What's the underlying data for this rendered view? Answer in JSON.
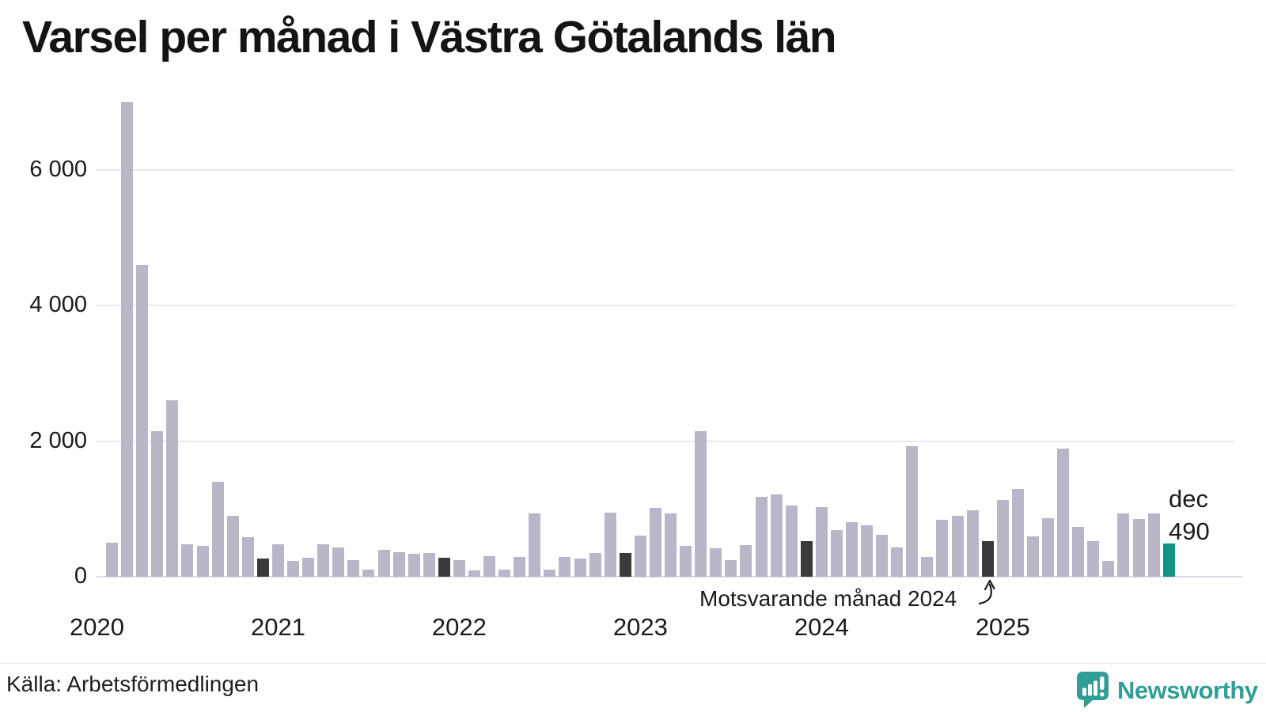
{
  "title": "Varsel per månad i Västra Götalands län",
  "chart_data": {
    "type": "bar",
    "title": "Varsel per månad i Västra Götalands län",
    "start_year": 2020,
    "series": [
      {
        "name": "Varsel per månad",
        "values": [
          0,
          500,
          7000,
          4600,
          2150,
          2600,
          480,
          460,
          1400,
          900,
          580,
          270,
          480,
          230,
          280,
          480,
          430,
          240,
          110,
          400,
          360,
          340,
          345,
          280,
          250,
          90,
          300,
          110,
          290,
          930,
          110,
          290,
          270,
          350,
          940,
          350,
          610,
          1010,
          930,
          450,
          2150,
          420,
          240,
          470,
          1180,
          1210,
          1050,
          520,
          1030,
          690,
          800,
          760,
          620,
          430,
          1920,
          290,
          840,
          900,
          980,
          530,
          1130,
          1300,
          600,
          860,
          1890,
          740,
          530,
          230,
          930,
          850,
          930,
          490
        ]
      }
    ],
    "xtick_labels": [
      "2020",
      "2021",
      "2022",
      "2023",
      "2024",
      "2025"
    ],
    "ytick_values": [
      0,
      2000,
      4000,
      6000
    ],
    "ytick_labels": [
      "0",
      "2 000",
      "4 000",
      "6 000"
    ],
    "ylim": [
      0,
      7100
    ],
    "grid": true,
    "legend": "none",
    "bar_color": "#b9b7c7",
    "comparison_color": "#3a3a3a",
    "highlight_color": "#0f9488",
    "comparison_month_indices": [
      11,
      23,
      35,
      47,
      59
    ],
    "highlight_index": 71,
    "annotation": "Motsvarande månad 2024",
    "highlight_label": {
      "month": "dec",
      "value": "490"
    }
  },
  "footer": {
    "source": "Källa: Arbetsförmedlingen",
    "brand": "Newsworthy"
  }
}
